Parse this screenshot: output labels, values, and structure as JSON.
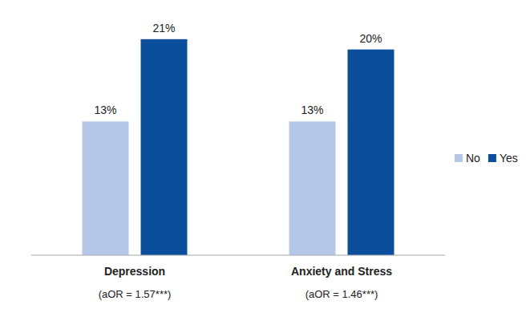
{
  "chart_data": {
    "type": "bar",
    "categories": [
      "Depression",
      "Anxiety and Stress"
    ],
    "category_notes": [
      "(aOR = 1.57***)",
      "(aOR = 1.46***)"
    ],
    "series": [
      {
        "name": "No",
        "color": "#b4c7e7",
        "values": [
          13,
          13
        ],
        "value_labels": [
          "13%",
          "13%"
        ]
      },
      {
        "name": "Yes",
        "color": "#0b4f9c",
        "values": [
          21,
          20
        ],
        "value_labels": [
          "21%",
          "20%"
        ]
      }
    ],
    "ylim": [
      0,
      22
    ],
    "data_labels": true,
    "tick_labels": false,
    "grid": false,
    "legend": "right"
  }
}
